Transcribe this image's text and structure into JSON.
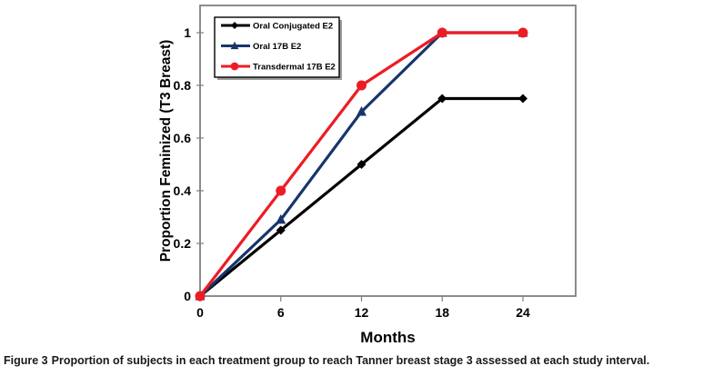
{
  "figure": {
    "caption_label": "Figure 3",
    "caption_text": "Proportion of subjects in each treatment group to reach Tanner breast stage 3 assessed at each study interval."
  },
  "chart_data": {
    "type": "line",
    "title": "",
    "xlabel": "Months",
    "ylabel": "Proportion Feminized (T3 Breast)",
    "x": [
      0,
      6,
      12,
      18,
      24
    ],
    "xticks": [
      0,
      6,
      12,
      18,
      24
    ],
    "yticks": [
      0,
      0.2,
      0.4,
      0.6,
      0.8,
      1
    ],
    "xlim": [
      0,
      28
    ],
    "ylim": [
      0,
      1.1
    ],
    "grid": false,
    "legend_position": "top-left-inside",
    "series": [
      {
        "name": "Oral Conjugated E2",
        "values": [
          0,
          0.25,
          0.5,
          0.75,
          0.75
        ],
        "color": "#000000",
        "marker": "diamond"
      },
      {
        "name": "Oral 17B E2",
        "values": [
          0,
          0.29,
          0.7,
          1.0,
          1.0
        ],
        "color": "#17356B",
        "marker": "triangle"
      },
      {
        "name": "Transdermal 17B E2",
        "values": [
          0,
          0.4,
          0.8,
          1.0,
          1.0
        ],
        "color": "#ED1C24",
        "marker": "circle"
      }
    ],
    "axis_color": "#808080",
    "text_color": "#000000"
  }
}
